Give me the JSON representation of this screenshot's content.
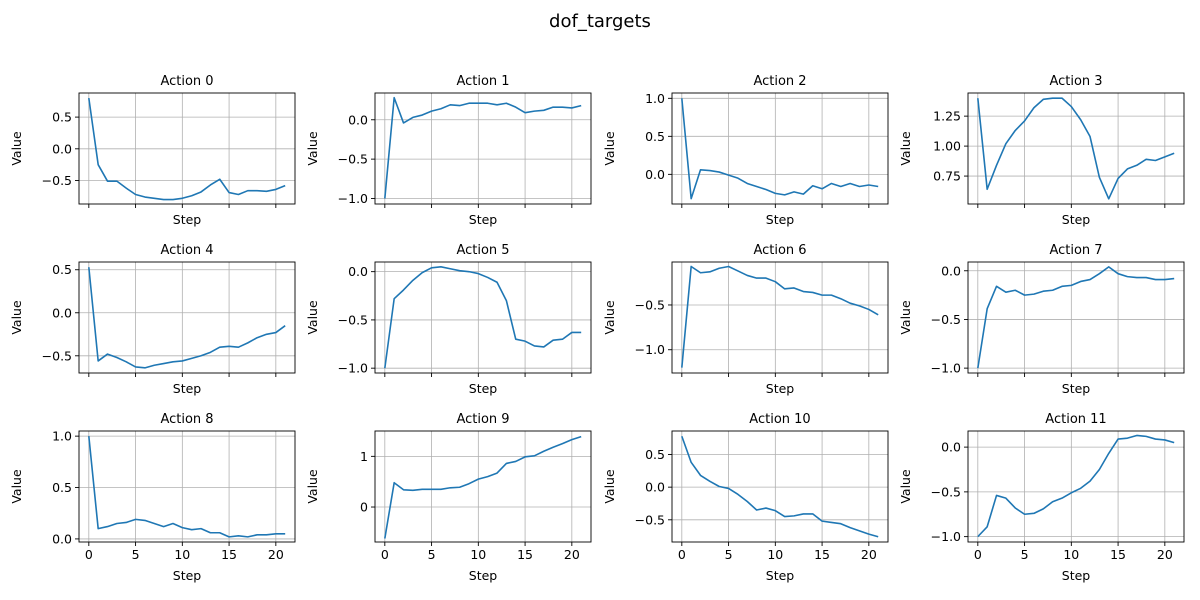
{
  "figure": {
    "suptitle": "dof_targets",
    "line_color": "#1f77b4"
  },
  "chart_data": [
    {
      "type": "line",
      "title": "Action 0",
      "xlabel": "Step",
      "ylabel": "Value",
      "x": [
        0,
        1,
        2,
        3,
        4,
        5,
        6,
        7,
        8,
        9,
        10,
        11,
        12,
        13,
        14,
        15,
        16,
        17,
        18,
        19,
        20,
        21
      ],
      "values": [
        0.8,
        -0.25,
        -0.51,
        -0.51,
        -0.62,
        -0.72,
        -0.76,
        -0.78,
        -0.8,
        -0.8,
        -0.78,
        -0.74,
        -0.68,
        -0.57,
        -0.48,
        -0.69,
        -0.72,
        -0.66,
        -0.66,
        -0.67,
        -0.64,
        -0.58
      ],
      "xlim": [
        -1.05,
        22.05
      ],
      "ylim": [
        -0.87,
        0.88
      ],
      "yticks": [
        -0.5,
        0.0,
        0.5
      ],
      "ytick_labels": [
        "−0.5",
        "0.0",
        "0.5"
      ],
      "xticks": [
        0,
        5,
        10,
        15,
        20
      ],
      "xtick_labels": [
        "",
        "",
        "",
        "",
        ""
      ],
      "grid": true
    },
    {
      "type": "line",
      "title": "Action 1",
      "xlabel": "Step",
      "ylabel": "Value",
      "x": [
        0,
        1,
        2,
        3,
        4,
        5,
        6,
        7,
        8,
        9,
        10,
        11,
        12,
        13,
        14,
        15,
        16,
        17,
        18,
        19,
        20,
        21
      ],
      "values": [
        -1.0,
        0.28,
        -0.04,
        0.03,
        0.06,
        0.11,
        0.14,
        0.19,
        0.18,
        0.21,
        0.21,
        0.21,
        0.19,
        0.21,
        0.16,
        0.09,
        0.11,
        0.12,
        0.16,
        0.16,
        0.15,
        0.18
      ],
      "xlim": [
        -1.05,
        22.05
      ],
      "ylim": [
        -1.07,
        0.34
      ],
      "yticks": [
        -1.0,
        -0.5,
        0.0
      ],
      "ytick_labels": [
        "−1.0",
        "−0.5",
        "0.0"
      ],
      "xticks": [
        0,
        5,
        10,
        15,
        20
      ],
      "xtick_labels": [
        "",
        "",
        "",
        "",
        ""
      ],
      "grid": true
    },
    {
      "type": "line",
      "title": "Action 2",
      "xlabel": "Step",
      "ylabel": "Value",
      "x": [
        0,
        1,
        2,
        3,
        4,
        5,
        6,
        7,
        8,
        9,
        10,
        11,
        12,
        13,
        14,
        15,
        16,
        17,
        18,
        19,
        20,
        21
      ],
      "values": [
        1.0,
        -0.32,
        0.06,
        0.05,
        0.03,
        -0.01,
        -0.05,
        -0.12,
        -0.16,
        -0.2,
        -0.25,
        -0.27,
        -0.23,
        -0.26,
        -0.15,
        -0.19,
        -0.12,
        -0.16,
        -0.12,
        -0.16,
        -0.14,
        -0.16
      ],
      "xlim": [
        -1.05,
        22.05
      ],
      "ylim": [
        -0.39,
        1.07
      ],
      "yticks": [
        0.0,
        0.5,
        1.0
      ],
      "ytick_labels": [
        "0.0",
        "0.5",
        "1.0"
      ],
      "xticks": [
        0,
        5,
        10,
        15,
        20
      ],
      "xtick_labels": [
        "",
        "",
        "",
        "",
        ""
      ],
      "grid": true
    },
    {
      "type": "line",
      "title": "Action 3",
      "xlabel": "Step",
      "ylabel": "Value",
      "x": [
        0,
        1,
        2,
        3,
        4,
        5,
        6,
        7,
        8,
        9,
        10,
        11,
        12,
        13,
        14,
        15,
        16,
        17,
        18,
        19,
        20,
        21
      ],
      "values": [
        1.4,
        0.64,
        0.84,
        1.02,
        1.13,
        1.21,
        1.32,
        1.39,
        1.4,
        1.4,
        1.33,
        1.22,
        1.08,
        0.74,
        0.56,
        0.73,
        0.81,
        0.84,
        0.89,
        0.88,
        0.91,
        0.94
      ],
      "xlim": [
        -1.05,
        22.05
      ],
      "ylim": [
        0.517,
        1.443
      ],
      "yticks": [
        0.75,
        1.0,
        1.25
      ],
      "ytick_labels": [
        "0.75",
        "1.00",
        "1.25"
      ],
      "xticks": [
        0,
        5,
        10,
        15,
        20
      ],
      "xtick_labels": [
        "",
        "",
        "",
        "",
        ""
      ],
      "grid": true
    },
    {
      "type": "line",
      "title": "Action 4",
      "xlabel": "Step",
      "ylabel": "Value",
      "x": [
        0,
        1,
        2,
        3,
        4,
        5,
        6,
        7,
        8,
        9,
        10,
        11,
        12,
        13,
        14,
        15,
        16,
        17,
        18,
        19,
        20,
        21
      ],
      "values": [
        0.53,
        -0.56,
        -0.48,
        -0.52,
        -0.57,
        -0.63,
        -0.64,
        -0.61,
        -0.59,
        -0.57,
        -0.56,
        -0.53,
        -0.5,
        -0.46,
        -0.4,
        -0.39,
        -0.4,
        -0.35,
        -0.29,
        -0.25,
        -0.23,
        -0.15
      ],
      "xlim": [
        -1.05,
        22.05
      ],
      "ylim": [
        -0.7,
        0.59
      ],
      "yticks": [
        -0.5,
        0.0,
        0.5
      ],
      "ytick_labels": [
        "−0.5",
        "0.0",
        "0.5"
      ],
      "xticks": [
        0,
        5,
        10,
        15,
        20
      ],
      "xtick_labels": [
        "",
        "",
        "",
        "",
        ""
      ],
      "grid": true
    },
    {
      "type": "line",
      "title": "Action 5",
      "xlabel": "Step",
      "ylabel": "Value",
      "x": [
        0,
        1,
        2,
        3,
        4,
        5,
        6,
        7,
        8,
        9,
        10,
        11,
        12,
        13,
        14,
        15,
        16,
        17,
        18,
        19,
        20,
        21
      ],
      "values": [
        -1.0,
        -0.28,
        -0.19,
        -0.09,
        -0.01,
        0.04,
        0.05,
        0.03,
        0.01,
        0.0,
        -0.02,
        -0.06,
        -0.11,
        -0.3,
        -0.7,
        -0.72,
        -0.77,
        -0.78,
        -0.71,
        -0.7,
        -0.63,
        -0.63
      ],
      "xlim": [
        -1.05,
        22.05
      ],
      "ylim": [
        -1.05,
        0.1
      ],
      "yticks": [
        -1.0,
        -0.5,
        0.0
      ],
      "ytick_labels": [
        "−1.0",
        "−0.5",
        "0.0"
      ],
      "xticks": [
        0,
        5,
        10,
        15,
        20
      ],
      "xtick_labels": [
        "",
        "",
        "",
        "",
        ""
      ],
      "grid": true
    },
    {
      "type": "line",
      "title": "Action 6",
      "xlabel": "Step",
      "ylabel": "Value",
      "x": [
        0,
        1,
        2,
        3,
        4,
        5,
        6,
        7,
        8,
        9,
        10,
        11,
        12,
        13,
        14,
        15,
        16,
        17,
        18,
        19,
        20,
        21
      ],
      "values": [
        -1.2,
        -0.07,
        -0.14,
        -0.13,
        -0.09,
        -0.07,
        -0.12,
        -0.17,
        -0.2,
        -0.2,
        -0.24,
        -0.32,
        -0.31,
        -0.35,
        -0.36,
        -0.39,
        -0.39,
        -0.43,
        -0.48,
        -0.51,
        -0.55,
        -0.61
      ],
      "xlim": [
        -1.05,
        22.05
      ],
      "ylim": [
        -1.26,
        -0.02
      ],
      "yticks": [
        -1.0,
        -0.5
      ],
      "ytick_labels": [
        "−1.0",
        "−0.5"
      ],
      "xticks": [
        0,
        5,
        10,
        15,
        20
      ],
      "xtick_labels": [
        "",
        "",
        "",
        "",
        ""
      ],
      "grid": true
    },
    {
      "type": "line",
      "title": "Action 7",
      "xlabel": "Step",
      "ylabel": "Value",
      "x": [
        0,
        1,
        2,
        3,
        4,
        5,
        6,
        7,
        8,
        9,
        10,
        11,
        12,
        13,
        14,
        15,
        16,
        17,
        18,
        19,
        20,
        21
      ],
      "values": [
        -1.0,
        -0.39,
        -0.16,
        -0.22,
        -0.2,
        -0.25,
        -0.24,
        -0.21,
        -0.2,
        -0.16,
        -0.15,
        -0.11,
        -0.09,
        -0.03,
        0.04,
        -0.03,
        -0.06,
        -0.07,
        -0.07,
        -0.09,
        -0.09,
        -0.08
      ],
      "xlim": [
        -1.05,
        22.05
      ],
      "ylim": [
        -1.05,
        0.09
      ],
      "yticks": [
        -1.0,
        -0.5,
        0.0
      ],
      "ytick_labels": [
        "−1.0",
        "−0.5",
        "0.0"
      ],
      "xticks": [
        0,
        5,
        10,
        15,
        20
      ],
      "xtick_labels": [
        "",
        "",
        "",
        "",
        ""
      ],
      "grid": true
    },
    {
      "type": "line",
      "title": "Action 8",
      "xlabel": "Step",
      "ylabel": "Value",
      "x": [
        0,
        1,
        2,
        3,
        4,
        5,
        6,
        7,
        8,
        9,
        10,
        11,
        12,
        13,
        14,
        15,
        16,
        17,
        18,
        19,
        20,
        21
      ],
      "values": [
        1.0,
        0.1,
        0.12,
        0.15,
        0.16,
        0.19,
        0.18,
        0.15,
        0.12,
        0.15,
        0.11,
        0.09,
        0.1,
        0.06,
        0.06,
        0.02,
        0.03,
        0.02,
        0.04,
        0.04,
        0.05,
        0.05
      ],
      "xlim": [
        -1.05,
        22.05
      ],
      "ylim": [
        -0.03,
        1.05
      ],
      "yticks": [
        0.0,
        0.5,
        1.0
      ],
      "ytick_labels": [
        "0.0",
        "0.5",
        "1.0"
      ],
      "xticks": [
        0,
        5,
        10,
        15,
        20
      ],
      "xtick_labels": [
        "0",
        "5",
        "10",
        "15",
        "20"
      ],
      "grid": true
    },
    {
      "type": "line",
      "title": "Action 9",
      "xlabel": "Step",
      "ylabel": "Value",
      "x": [
        0,
        1,
        2,
        3,
        4,
        5,
        6,
        7,
        8,
        9,
        10,
        11,
        12,
        13,
        14,
        15,
        16,
        17,
        18,
        19,
        20,
        21
      ],
      "values": [
        -0.62,
        0.48,
        0.34,
        0.33,
        0.35,
        0.35,
        0.35,
        0.38,
        0.39,
        0.46,
        0.55,
        0.6,
        0.67,
        0.86,
        0.9,
        0.99,
        1.01,
        1.1,
        1.18,
        1.25,
        1.33,
        1.39
      ],
      "xlim": [
        -1.05,
        22.05
      ],
      "ylim": [
        -0.69,
        1.5
      ],
      "yticks": [
        0,
        1
      ],
      "ytick_labels": [
        "0",
        "1"
      ],
      "xticks": [
        0,
        5,
        10,
        15,
        20
      ],
      "xtick_labels": [
        "0",
        "5",
        "10",
        "15",
        "20"
      ],
      "grid": true
    },
    {
      "type": "line",
      "title": "Action 10",
      "xlabel": "Step",
      "ylabel": "Value",
      "x": [
        0,
        1,
        2,
        3,
        4,
        5,
        6,
        7,
        8,
        9,
        10,
        11,
        12,
        13,
        14,
        15,
        16,
        17,
        18,
        19,
        20,
        21
      ],
      "values": [
        0.78,
        0.38,
        0.18,
        0.09,
        0.01,
        -0.02,
        -0.11,
        -0.22,
        -0.35,
        -0.32,
        -0.36,
        -0.45,
        -0.44,
        -0.41,
        -0.41,
        -0.52,
        -0.54,
        -0.56,
        -0.62,
        -0.67,
        -0.72,
        -0.76
      ],
      "xlim": [
        -1.05,
        22.05
      ],
      "ylim": [
        -0.84,
        0.86
      ],
      "yticks": [
        -0.5,
        0.0,
        0.5
      ],
      "ytick_labels": [
        "−0.5",
        "0.0",
        "0.5"
      ],
      "xticks": [
        0,
        5,
        10,
        15,
        20
      ],
      "xtick_labels": [
        "0",
        "5",
        "10",
        "15",
        "20"
      ],
      "grid": true
    },
    {
      "type": "line",
      "title": "Action 11",
      "xlabel": "Step",
      "ylabel": "Value",
      "x": [
        0,
        1,
        2,
        3,
        4,
        5,
        6,
        7,
        8,
        9,
        10,
        11,
        12,
        13,
        14,
        15,
        16,
        17,
        18,
        19,
        20,
        21
      ],
      "values": [
        -1.0,
        -0.89,
        -0.54,
        -0.57,
        -0.68,
        -0.75,
        -0.74,
        -0.69,
        -0.61,
        -0.57,
        -0.51,
        -0.46,
        -0.38,
        -0.25,
        -0.07,
        0.09,
        0.1,
        0.13,
        0.12,
        0.09,
        0.08,
        0.05
      ],
      "xlim": [
        -1.05,
        22.05
      ],
      "ylim": [
        -1.06,
        0.18
      ],
      "yticks": [
        -1.0,
        -0.5,
        0.0
      ],
      "ytick_labels": [
        "−1.0",
        "−0.5",
        "0.0"
      ],
      "xticks": [
        0,
        5,
        10,
        15,
        20
      ],
      "xtick_labels": [
        "0",
        "5",
        "10",
        "15",
        "20"
      ],
      "grid": true
    }
  ]
}
